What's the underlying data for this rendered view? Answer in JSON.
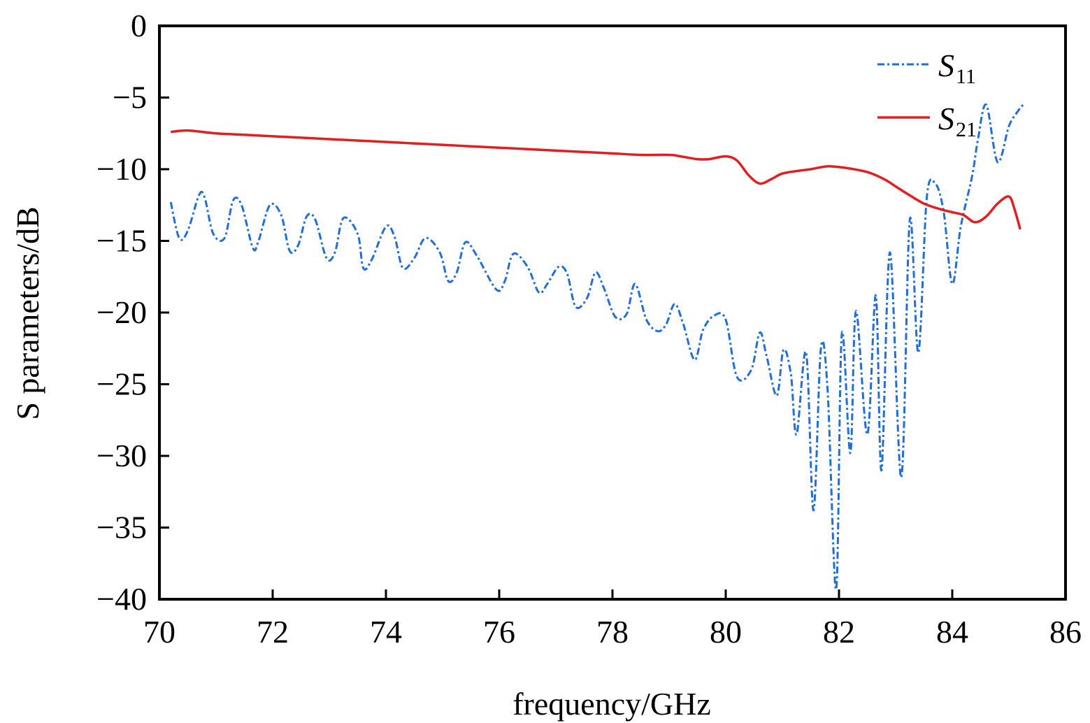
{
  "chart_data": {
    "type": "line",
    "title": "",
    "xlabel": "frequency/GHz",
    "ylabel": "S parameters/dB",
    "xlim": [
      70,
      86
    ],
    "ylim": [
      -40,
      0
    ],
    "xticks": [
      70,
      72,
      74,
      76,
      78,
      80,
      82,
      84,
      86
    ],
    "yticks": [
      0,
      -5,
      -10,
      -15,
      -20,
      -25,
      -30,
      -35,
      -40
    ],
    "grid": false,
    "legend_position": "top-right",
    "series": [
      {
        "name": "S11",
        "name_main": "S",
        "name_sub": "11",
        "color": "#1f6fd6",
        "style": "dash-dot",
        "x": [
          70.2,
          70.35,
          70.5,
          70.7,
          70.8,
          70.95,
          71.15,
          71.3,
          71.45,
          71.65,
          71.75,
          71.95,
          72.15,
          72.3,
          72.45,
          72.6,
          72.75,
          72.95,
          73.1,
          73.25,
          73.5,
          73.6,
          73.75,
          74.0,
          74.15,
          74.3,
          74.5,
          74.7,
          74.95,
          75.1,
          75.25,
          75.4,
          75.6,
          75.95,
          76.1,
          76.25,
          76.5,
          76.7,
          76.85,
          77.05,
          77.2,
          77.35,
          77.55,
          77.7,
          77.85,
          78.05,
          78.25,
          78.4,
          78.6,
          78.8,
          78.95,
          79.1,
          79.25,
          79.45,
          79.6,
          79.8,
          80.0,
          80.2,
          80.45,
          80.6,
          80.72,
          80.9,
          81.02,
          81.15,
          81.25,
          81.42,
          81.55,
          81.68,
          81.8,
          81.95,
          82.05,
          82.2,
          82.3,
          82.5,
          82.65,
          82.75,
          82.9,
          83.1,
          83.25,
          83.4,
          83.55,
          83.7,
          83.85,
          84.0,
          84.15,
          84.35,
          84.45,
          84.6,
          84.8,
          85.0,
          85.15,
          85.25
        ],
        "y": [
          -12.3,
          -14.8,
          -14.3,
          -11.8,
          -12.0,
          -14.5,
          -14.8,
          -12.2,
          -12.5,
          -15.5,
          -15.0,
          -12.5,
          -13.2,
          -15.7,
          -15.3,
          -13.3,
          -13.5,
          -16.2,
          -15.8,
          -13.4,
          -14.5,
          -16.9,
          -16.3,
          -14.0,
          -14.7,
          -16.9,
          -16.2,
          -14.8,
          -15.8,
          -17.8,
          -17.2,
          -15.1,
          -16.0,
          -18.4,
          -17.8,
          -15.9,
          -16.8,
          -18.6,
          -18.0,
          -16.8,
          -17.3,
          -19.6,
          -19.0,
          -17.2,
          -18.3,
          -20.3,
          -20.1,
          -18.0,
          -20.5,
          -21.3,
          -20.8,
          -19.4,
          -20.8,
          -23.3,
          -21.2,
          -20.2,
          -20.5,
          -24.5,
          -24.0,
          -21.4,
          -23.0,
          -25.8,
          -22.6,
          -24.3,
          -28.5,
          -22.8,
          -33.8,
          -22.5,
          -25.5,
          -39.3,
          -21.5,
          -29.8,
          -19.9,
          -28.5,
          -18.8,
          -31.0,
          -15.8,
          -31.5,
          -13.5,
          -22.8,
          -12.0,
          -11.0,
          -13.0,
          -18.0,
          -14.0,
          -10.5,
          -8.0,
          -5.5,
          -9.5,
          -7.0,
          -6.0,
          -5.5
        ]
      },
      {
        "name": "S21",
        "name_main": "S",
        "name_sub": "21",
        "color": "#e02020",
        "style": "solid",
        "x": [
          70.2,
          70.5,
          71.0,
          71.5,
          72.0,
          72.5,
          73.0,
          73.5,
          74.0,
          74.5,
          75.0,
          75.5,
          76.0,
          76.5,
          77.0,
          77.5,
          78.0,
          78.5,
          79.0,
          79.2,
          79.5,
          79.7,
          80.0,
          80.2,
          80.4,
          80.6,
          80.8,
          81.0,
          81.3,
          81.5,
          81.8,
          82.1,
          82.5,
          82.8,
          83.0,
          83.2,
          83.5,
          83.8,
          84.0,
          84.2,
          84.4,
          84.6,
          84.8,
          85.0,
          85.1,
          85.2
        ],
        "y": [
          -7.4,
          -7.3,
          -7.5,
          -7.6,
          -7.7,
          -7.8,
          -7.9,
          -8.0,
          -8.1,
          -8.2,
          -8.3,
          -8.4,
          -8.5,
          -8.6,
          -8.7,
          -8.8,
          -8.9,
          -9.0,
          -9.0,
          -9.1,
          -9.3,
          -9.3,
          -9.1,
          -9.4,
          -10.4,
          -11.0,
          -10.7,
          -10.3,
          -10.1,
          -10.0,
          -9.8,
          -9.9,
          -10.2,
          -10.7,
          -11.2,
          -11.7,
          -12.4,
          -12.8,
          -13.0,
          -13.2,
          -13.7,
          -13.3,
          -12.4,
          -11.9,
          -12.8,
          -14.2
        ]
      }
    ]
  }
}
